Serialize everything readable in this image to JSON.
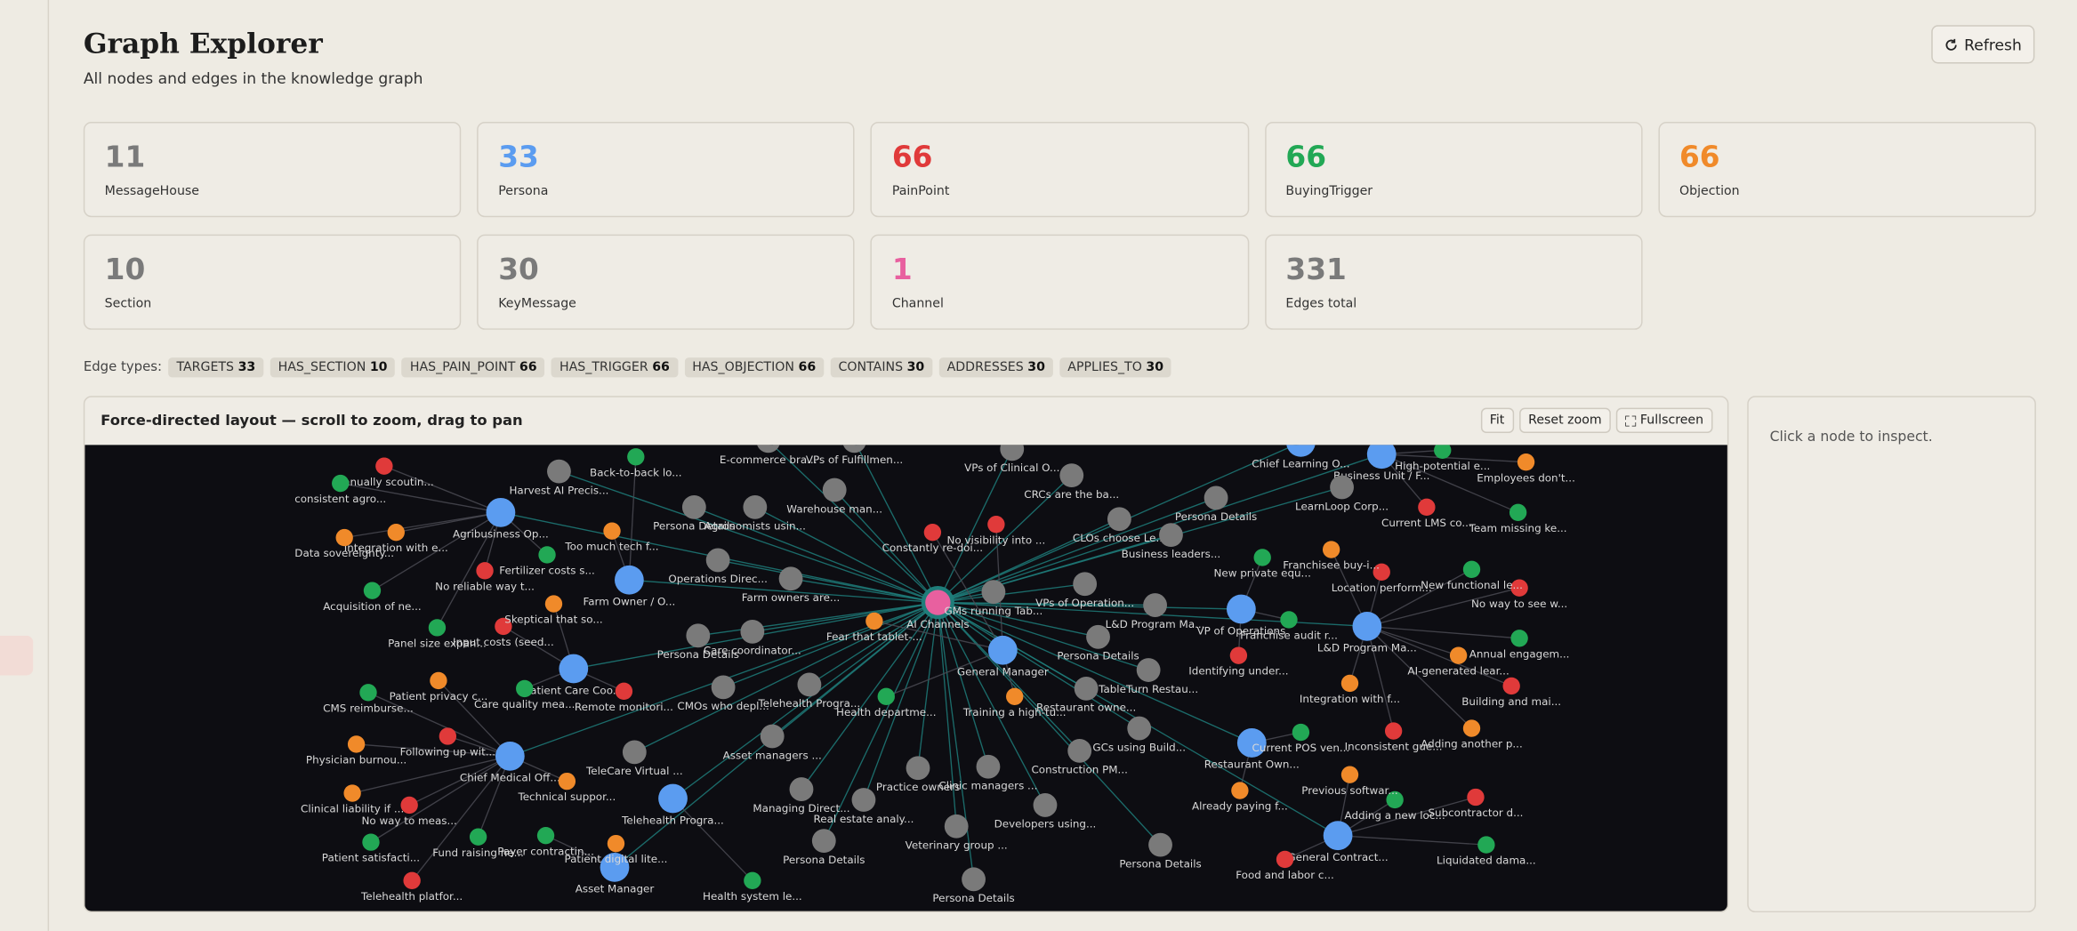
{
  "header": {
    "title": "Graph Explorer",
    "subtitle": "All nodes and edges in the knowledge graph",
    "refresh": "Refresh"
  },
  "stats": [
    {
      "value": 11,
      "label": "MessageHouse",
      "color": "#7a7a7a"
    },
    {
      "value": 33,
      "label": "Persona",
      "color": "#5b9cf0"
    },
    {
      "value": 66,
      "label": "PainPoint",
      "color": "#e03a3a"
    },
    {
      "value": 66,
      "label": "BuyingTrigger",
      "color": "#22a855"
    },
    {
      "value": 66,
      "label": "Objection",
      "color": "#f08a2a"
    },
    {
      "value": 10,
      "label": "Section",
      "color": "#7a7a7a"
    },
    {
      "value": 30,
      "label": "KeyMessage",
      "color": "#7a7a7a"
    },
    {
      "value": 1,
      "label": "Channel",
      "color": "#e8609f"
    },
    {
      "value": 331,
      "label": "Edges total",
      "color": "#7a7a7a"
    }
  ],
  "edge_types": {
    "label": "Edge types:",
    "items": [
      {
        "name": "TARGETS",
        "count": 33
      },
      {
        "name": "HAS_SECTION",
        "count": 10
      },
      {
        "name": "HAS_PAIN_POINT",
        "count": 66
      },
      {
        "name": "HAS_TRIGGER",
        "count": 66
      },
      {
        "name": "HAS_OBJECTION",
        "count": 66
      },
      {
        "name": "CONTAINS",
        "count": 30
      },
      {
        "name": "ADDRESSES",
        "count": 30
      },
      {
        "name": "APPLIES_TO",
        "count": 30
      }
    ]
  },
  "graph": {
    "title": "Force-directed layout — scroll to zoom, drag to pan",
    "buttons": [
      "Fit",
      "Reset zoom",
      "Fullscreen"
    ],
    "nodes": [
      {
        "label": "AI Channels",
        "kind": "Channel"
      },
      {
        "label": "Agribusiness Op...",
        "kind": "Persona"
      },
      {
        "label": "Farm Owner / O...",
        "kind": "Persona"
      },
      {
        "label": "Patient Care Coo...",
        "kind": "Persona"
      },
      {
        "label": "Chief Medical Off...",
        "kind": "Persona"
      },
      {
        "label": "Telehealth Progra...",
        "kind": "Persona"
      },
      {
        "label": "Asset Manager",
        "kind": "Persona"
      },
      {
        "label": "General Manager",
        "kind": "Persona"
      },
      {
        "label": "VP of Operations",
        "kind": "Persona"
      },
      {
        "label": "L&D Program Ma...",
        "kind": "Persona"
      },
      {
        "label": "Restaurant Own...",
        "kind": "Persona"
      },
      {
        "label": "General Contract...",
        "kind": "Persona"
      },
      {
        "label": "Business Unit / F...",
        "kind": "Persona"
      },
      {
        "label": "Chief Learning O...",
        "kind": "Persona"
      },
      {
        "label": "Harvest AI Precis...",
        "kind": "KeyMessage"
      },
      {
        "label": "Persona Details",
        "kind": "Section"
      },
      {
        "label": "Agronomists usin...",
        "kind": "KeyMessage"
      },
      {
        "label": "Operations Direc...",
        "kind": "KeyMessage"
      },
      {
        "label": "Farm owners are...",
        "kind": "KeyMessage"
      },
      {
        "label": "Persona Details",
        "kind": "Section"
      },
      {
        "label": "Care coordinator...",
        "kind": "KeyMessage"
      },
      {
        "label": "CMOs who depl...",
        "kind": "KeyMessage"
      },
      {
        "label": "Telehealth Progra...",
        "kind": "KeyMessage"
      },
      {
        "label": "Asset managers ...",
        "kind": "KeyMessage"
      },
      {
        "label": "TeleCare Virtual ...",
        "kind": "KeyMessage"
      },
      {
        "label": "Managing Direct...",
        "kind": "KeyMessage"
      },
      {
        "label": "Real estate analy...",
        "kind": "KeyMessage"
      },
      {
        "label": "Persona Details",
        "kind": "Section"
      },
      {
        "label": "Practice owners",
        "kind": "KeyMessage"
      },
      {
        "label": "Clinic managers ...",
        "kind": "KeyMessage"
      },
      {
        "label": "Veterinary group ...",
        "kind": "KeyMessage"
      },
      {
        "label": "Persona Details",
        "kind": "Section"
      },
      {
        "label": "Developers using...",
        "kind": "KeyMessage"
      },
      {
        "label": "Construction PM...",
        "kind": "KeyMessage"
      },
      {
        "label": "GCs using Build...",
        "kind": "KeyMessage"
      },
      {
        "label": "Persona Details",
        "kind": "Section"
      },
      {
        "label": "Restaurant owne...",
        "kind": "KeyMessage"
      },
      {
        "label": "TableTurn Restau...",
        "kind": "KeyMessage"
      },
      {
        "label": "Persona Details",
        "kind": "Section"
      },
      {
        "label": "L&D Program Ma...",
        "kind": "KeyMessage"
      },
      {
        "label": "VPs of Operation...",
        "kind": "KeyMessage"
      },
      {
        "label": "CLOs choose Le...",
        "kind": "KeyMessage"
      },
      {
        "label": "Business leaders...",
        "kind": "KeyMessage"
      },
      {
        "label": "Persona Details",
        "kind": "Section"
      },
      {
        "label": "LearnLoop Corp...",
        "kind": "KeyMessage"
      },
      {
        "label": "CRCs are the ba...",
        "kind": "KeyMessage"
      },
      {
        "label": "VPs of Clinical O...",
        "kind": "KeyMessage"
      },
      {
        "label": "Warehouse man...",
        "kind": "KeyMessage"
      },
      {
        "label": "VPs of Fulfillmen...",
        "kind": "KeyMessage"
      },
      {
        "label": "E-commerce bra...",
        "kind": "KeyMessage"
      },
      {
        "label": "GMs running Tab...",
        "kind": "KeyMessage"
      },
      {
        "label": "Manually scoutin...",
        "kind": "PainPoint"
      },
      {
        "label": "No reliable way t...",
        "kind": "PainPoint"
      },
      {
        "label": "Input costs (seed...",
        "kind": "PainPoint"
      },
      {
        "label": "Remote monitori...",
        "kind": "PainPoint"
      },
      {
        "label": "Following up wit...",
        "kind": "PainPoint"
      },
      {
        "label": "No way to meas...",
        "kind": "PainPoint"
      },
      {
        "label": "Telehealth platfor...",
        "kind": "PainPoint"
      },
      {
        "label": "No visibility into ...",
        "kind": "PainPoint"
      },
      {
        "label": "Constantly re-doi...",
        "kind": "PainPoint"
      },
      {
        "label": "Current LMS co...",
        "kind": "PainPoint"
      },
      {
        "label": "Location perform...",
        "kind": "PainPoint"
      },
      {
        "label": "No way to see w...",
        "kind": "PainPoint"
      },
      {
        "label": "Identifying under...",
        "kind": "PainPoint"
      },
      {
        "label": "Building and mai...",
        "kind": "PainPoint"
      },
      {
        "label": "Inconsistent gue...",
        "kind": "PainPoint"
      },
      {
        "label": "Subcontractor d...",
        "kind": "PainPoint"
      },
      {
        "label": "Food and labor c...",
        "kind": "PainPoint"
      },
      {
        "label": "consistent agro...",
        "kind": "BuyingTrigger"
      },
      {
        "label": "Back-to-back lo...",
        "kind": "BuyingTrigger"
      },
      {
        "label": "Fertilizer costs s...",
        "kind": "BuyingTrigger"
      },
      {
        "label": "Acquisition of ne...",
        "kind": "BuyingTrigger"
      },
      {
        "label": "Panel size expan...",
        "kind": "BuyingTrigger"
      },
      {
        "label": "CMS reimburse...",
        "kind": "BuyingTrigger"
      },
      {
        "label": "Care quality mea...",
        "kind": "BuyingTrigger"
      },
      {
        "label": "Health departme...",
        "kind": "BuyingTrigger"
      },
      {
        "label": "Fund raising ne...",
        "kind": "BuyingTrigger"
      },
      {
        "label": "Payer contractin...",
        "kind": "BuyingTrigger"
      },
      {
        "label": "Patient satisfacti...",
        "kind": "BuyingTrigger"
      },
      {
        "label": "Health system le...",
        "kind": "BuyingTrigger"
      },
      {
        "label": "New private equ...",
        "kind": "BuyingTrigger"
      },
      {
        "label": "Franchise audit r...",
        "kind": "BuyingTrigger"
      },
      {
        "label": "Current POS ven...",
        "kind": "BuyingTrigger"
      },
      {
        "label": "Adding a new loc...",
        "kind": "BuyingTrigger"
      },
      {
        "label": "New functional le...",
        "kind": "BuyingTrigger"
      },
      {
        "label": "Team missing ke...",
        "kind": "BuyingTrigger"
      },
      {
        "label": "Annual engagem...",
        "kind": "BuyingTrigger"
      },
      {
        "label": "Liquidated dama...",
        "kind": "BuyingTrigger"
      },
      {
        "label": "High-potential e...",
        "kind": "BuyingTrigger"
      },
      {
        "label": "Integration with e...",
        "kind": "Objection"
      },
      {
        "label": "Data sovereignty...",
        "kind": "Objection"
      },
      {
        "label": "Too much tech f...",
        "kind": "Objection"
      },
      {
        "label": "Skeptical that so...",
        "kind": "Objection"
      },
      {
        "label": "Patient privacy c...",
        "kind": "Objection"
      },
      {
        "label": "Physician burnou...",
        "kind": "Objection"
      },
      {
        "label": "Clinical liability if ...",
        "kind": "Objection"
      },
      {
        "label": "Technical suppor...",
        "kind": "Objection"
      },
      {
        "label": "Patient digital lite...",
        "kind": "Objection"
      },
      {
        "label": "Fear that tablet-...",
        "kind": "Objection"
      },
      {
        "label": "Training a high-tu...",
        "kind": "Objection"
      },
      {
        "label": "Franchisee buy-i...",
        "kind": "Objection"
      },
      {
        "label": "Integration with f...",
        "kind": "Objection"
      },
      {
        "label": "Previous softwar...",
        "kind": "Objection"
      },
      {
        "label": "Already paying f...",
        "kind": "Objection"
      },
      {
        "label": "Employees don't...",
        "kind": "Objection"
      },
      {
        "label": "AI-generated lear...",
        "kind": "Objection"
      },
      {
        "label": "Adding another p...",
        "kind": "Objection"
      }
    ]
  },
  "inspector": {
    "hint": "Click a node to inspect."
  }
}
